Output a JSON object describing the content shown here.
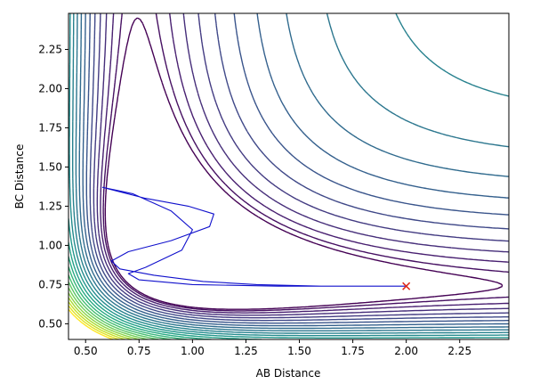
{
  "chart_data": {
    "type": "contour",
    "xlabel": "AB Distance",
    "ylabel": "BC Distance",
    "xlim": [
      0.42,
      2.48
    ],
    "ylim": [
      0.4,
      2.48
    ],
    "xticks": [
      {
        "v": 0.5,
        "label": "0.50"
      },
      {
        "v": 0.75,
        "label": "0.75"
      },
      {
        "v": 1.0,
        "label": "1.00"
      },
      {
        "v": 1.25,
        "label": "1.25"
      },
      {
        "v": 1.5,
        "label": "1.50"
      },
      {
        "v": 1.75,
        "label": "1.75"
      },
      {
        "v": 2.0,
        "label": "2.00"
      },
      {
        "v": 2.25,
        "label": "2.25"
      }
    ],
    "yticks": [
      {
        "v": 0.5,
        "label": "0.50"
      },
      {
        "v": 0.75,
        "label": "0.75"
      },
      {
        "v": 1.0,
        "label": "1.00"
      },
      {
        "v": 1.25,
        "label": "1.25"
      },
      {
        "v": 1.5,
        "label": "1.50"
      },
      {
        "v": 1.75,
        "label": "1.75"
      },
      {
        "v": 2.0,
        "label": "2.00"
      },
      {
        "v": 2.25,
        "label": "2.25"
      }
    ],
    "colormap": "viridis",
    "contour_levels": 24,
    "trajectory": {
      "color": "#1010cc",
      "points": [
        [
          2.0,
          0.74
        ],
        [
          1.6,
          0.74
        ],
        [
          1.3,
          0.75
        ],
        [
          1.05,
          0.77
        ],
        [
          0.82,
          0.81
        ],
        [
          0.66,
          0.85
        ],
        [
          0.62,
          0.9
        ],
        [
          0.7,
          0.96
        ],
        [
          0.9,
          1.03
        ],
        [
          1.08,
          1.12
        ],
        [
          1.1,
          1.2
        ],
        [
          0.98,
          1.25
        ],
        [
          0.78,
          1.3
        ],
        [
          0.58,
          1.37
        ],
        [
          0.72,
          1.33
        ],
        [
          0.9,
          1.22
        ],
        [
          1.0,
          1.1
        ],
        [
          0.95,
          0.97
        ],
        [
          0.78,
          0.86
        ],
        [
          0.7,
          0.82
        ],
        [
          0.75,
          0.78
        ],
        [
          1.0,
          0.75
        ],
        [
          1.4,
          0.74
        ],
        [
          2.0,
          0.74
        ]
      ]
    },
    "marker": {
      "x": 2.0,
      "y": 0.74,
      "symbol": "x",
      "color": "#e0281a"
    }
  }
}
